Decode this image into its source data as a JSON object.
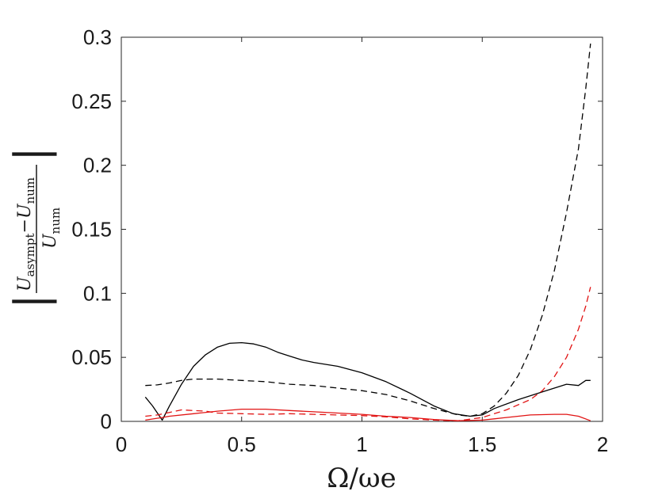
{
  "chart_data": {
    "type": "line",
    "xlabel": "Ω/ωe",
    "ylabel": {
      "bar": "|",
      "numerator_u": "U",
      "numerator_sub1": "asympt",
      "minus": "−",
      "numerator_u2": "U",
      "numerator_sub2": "num",
      "denominator_u": "U",
      "denominator_sub": "num"
    },
    "xlim": [
      0,
      2
    ],
    "ylim": [
      0,
      0.3
    ],
    "x_ticks": [
      "0",
      "0.5",
      "1",
      "1.5",
      "2"
    ],
    "y_ticks": [
      "0",
      "0.05",
      "0.1",
      "0.15",
      "0.2",
      "0.25",
      "0.3"
    ],
    "grid": false,
    "series": [
      {
        "color": "#000000",
        "dash": "solid",
        "x": [
          0.1,
          0.13,
          0.17,
          0.2,
          0.25,
          0.3,
          0.35,
          0.4,
          0.45,
          0.5,
          0.55,
          0.6,
          0.65,
          0.7,
          0.75,
          0.8,
          0.9,
          1.0,
          1.1,
          1.2,
          1.3,
          1.38,
          1.45,
          1.5,
          1.55,
          1.65,
          1.75,
          1.85,
          1.9,
          1.93,
          1.95
        ],
        "y": [
          0.019,
          0.012,
          0.001,
          0.012,
          0.029,
          0.043,
          0.052,
          0.058,
          0.061,
          0.0615,
          0.0605,
          0.058,
          0.054,
          0.051,
          0.048,
          0.046,
          0.043,
          0.038,
          0.031,
          0.022,
          0.012,
          0.006,
          0.004,
          0.005,
          0.01,
          0.017,
          0.023,
          0.029,
          0.028,
          0.032,
          0.032
        ]
      },
      {
        "color": "#000000",
        "dash": "dashed",
        "x": [
          0.1,
          0.15,
          0.2,
          0.25,
          0.3,
          0.35,
          0.4,
          0.45,
          0.5,
          0.6,
          0.7,
          0.8,
          0.9,
          1.0,
          1.1,
          1.2,
          1.3,
          1.4,
          1.45,
          1.5,
          1.55,
          1.6,
          1.65,
          1.7,
          1.75,
          1.8,
          1.85,
          1.9,
          1.93,
          1.95
        ],
        "y": [
          0.028,
          0.0285,
          0.03,
          0.032,
          0.033,
          0.033,
          0.033,
          0.0325,
          0.032,
          0.031,
          0.029,
          0.028,
          0.026,
          0.024,
          0.021,
          0.016,
          0.01,
          0.005,
          0.004,
          0.006,
          0.012,
          0.022,
          0.036,
          0.056,
          0.083,
          0.118,
          0.163,
          0.213,
          0.26,
          0.295
        ]
      },
      {
        "color": "#e11414",
        "dash": "solid",
        "x": [
          0.1,
          0.17,
          0.2,
          0.3,
          0.4,
          0.5,
          0.6,
          0.7,
          0.8,
          0.9,
          1.0,
          1.1,
          1.2,
          1.3,
          1.4,
          1.5,
          1.55,
          1.6,
          1.7,
          1.8,
          1.85,
          1.9,
          1.95
        ],
        "y": [
          0.001,
          0.003,
          0.004,
          0.006,
          0.008,
          0.0095,
          0.0095,
          0.0085,
          0.0075,
          0.0065,
          0.0055,
          0.004,
          0.003,
          0.0015,
          0.0005,
          0.001,
          0.002,
          0.003,
          0.005,
          0.0055,
          0.0055,
          0.004,
          0.0005
        ]
      },
      {
        "color": "#e11414",
        "dash": "dashed",
        "x": [
          0.1,
          0.15,
          0.2,
          0.25,
          0.3,
          0.35,
          0.4,
          0.5,
          0.6,
          0.7,
          0.8,
          0.9,
          1.0,
          1.1,
          1.2,
          1.3,
          1.4,
          1.5,
          1.6,
          1.7,
          1.75,
          1.8,
          1.85,
          1.9,
          1.93,
          1.95
        ],
        "y": [
          0.004,
          0.005,
          0.007,
          0.009,
          0.0085,
          0.008,
          0.0065,
          0.006,
          0.0055,
          0.006,
          0.0055,
          0.005,
          0.0045,
          0.0035,
          0.002,
          0.001,
          0.0005,
          0.003,
          0.009,
          0.017,
          0.024,
          0.035,
          0.05,
          0.072,
          0.09,
          0.105
        ]
      }
    ]
  }
}
